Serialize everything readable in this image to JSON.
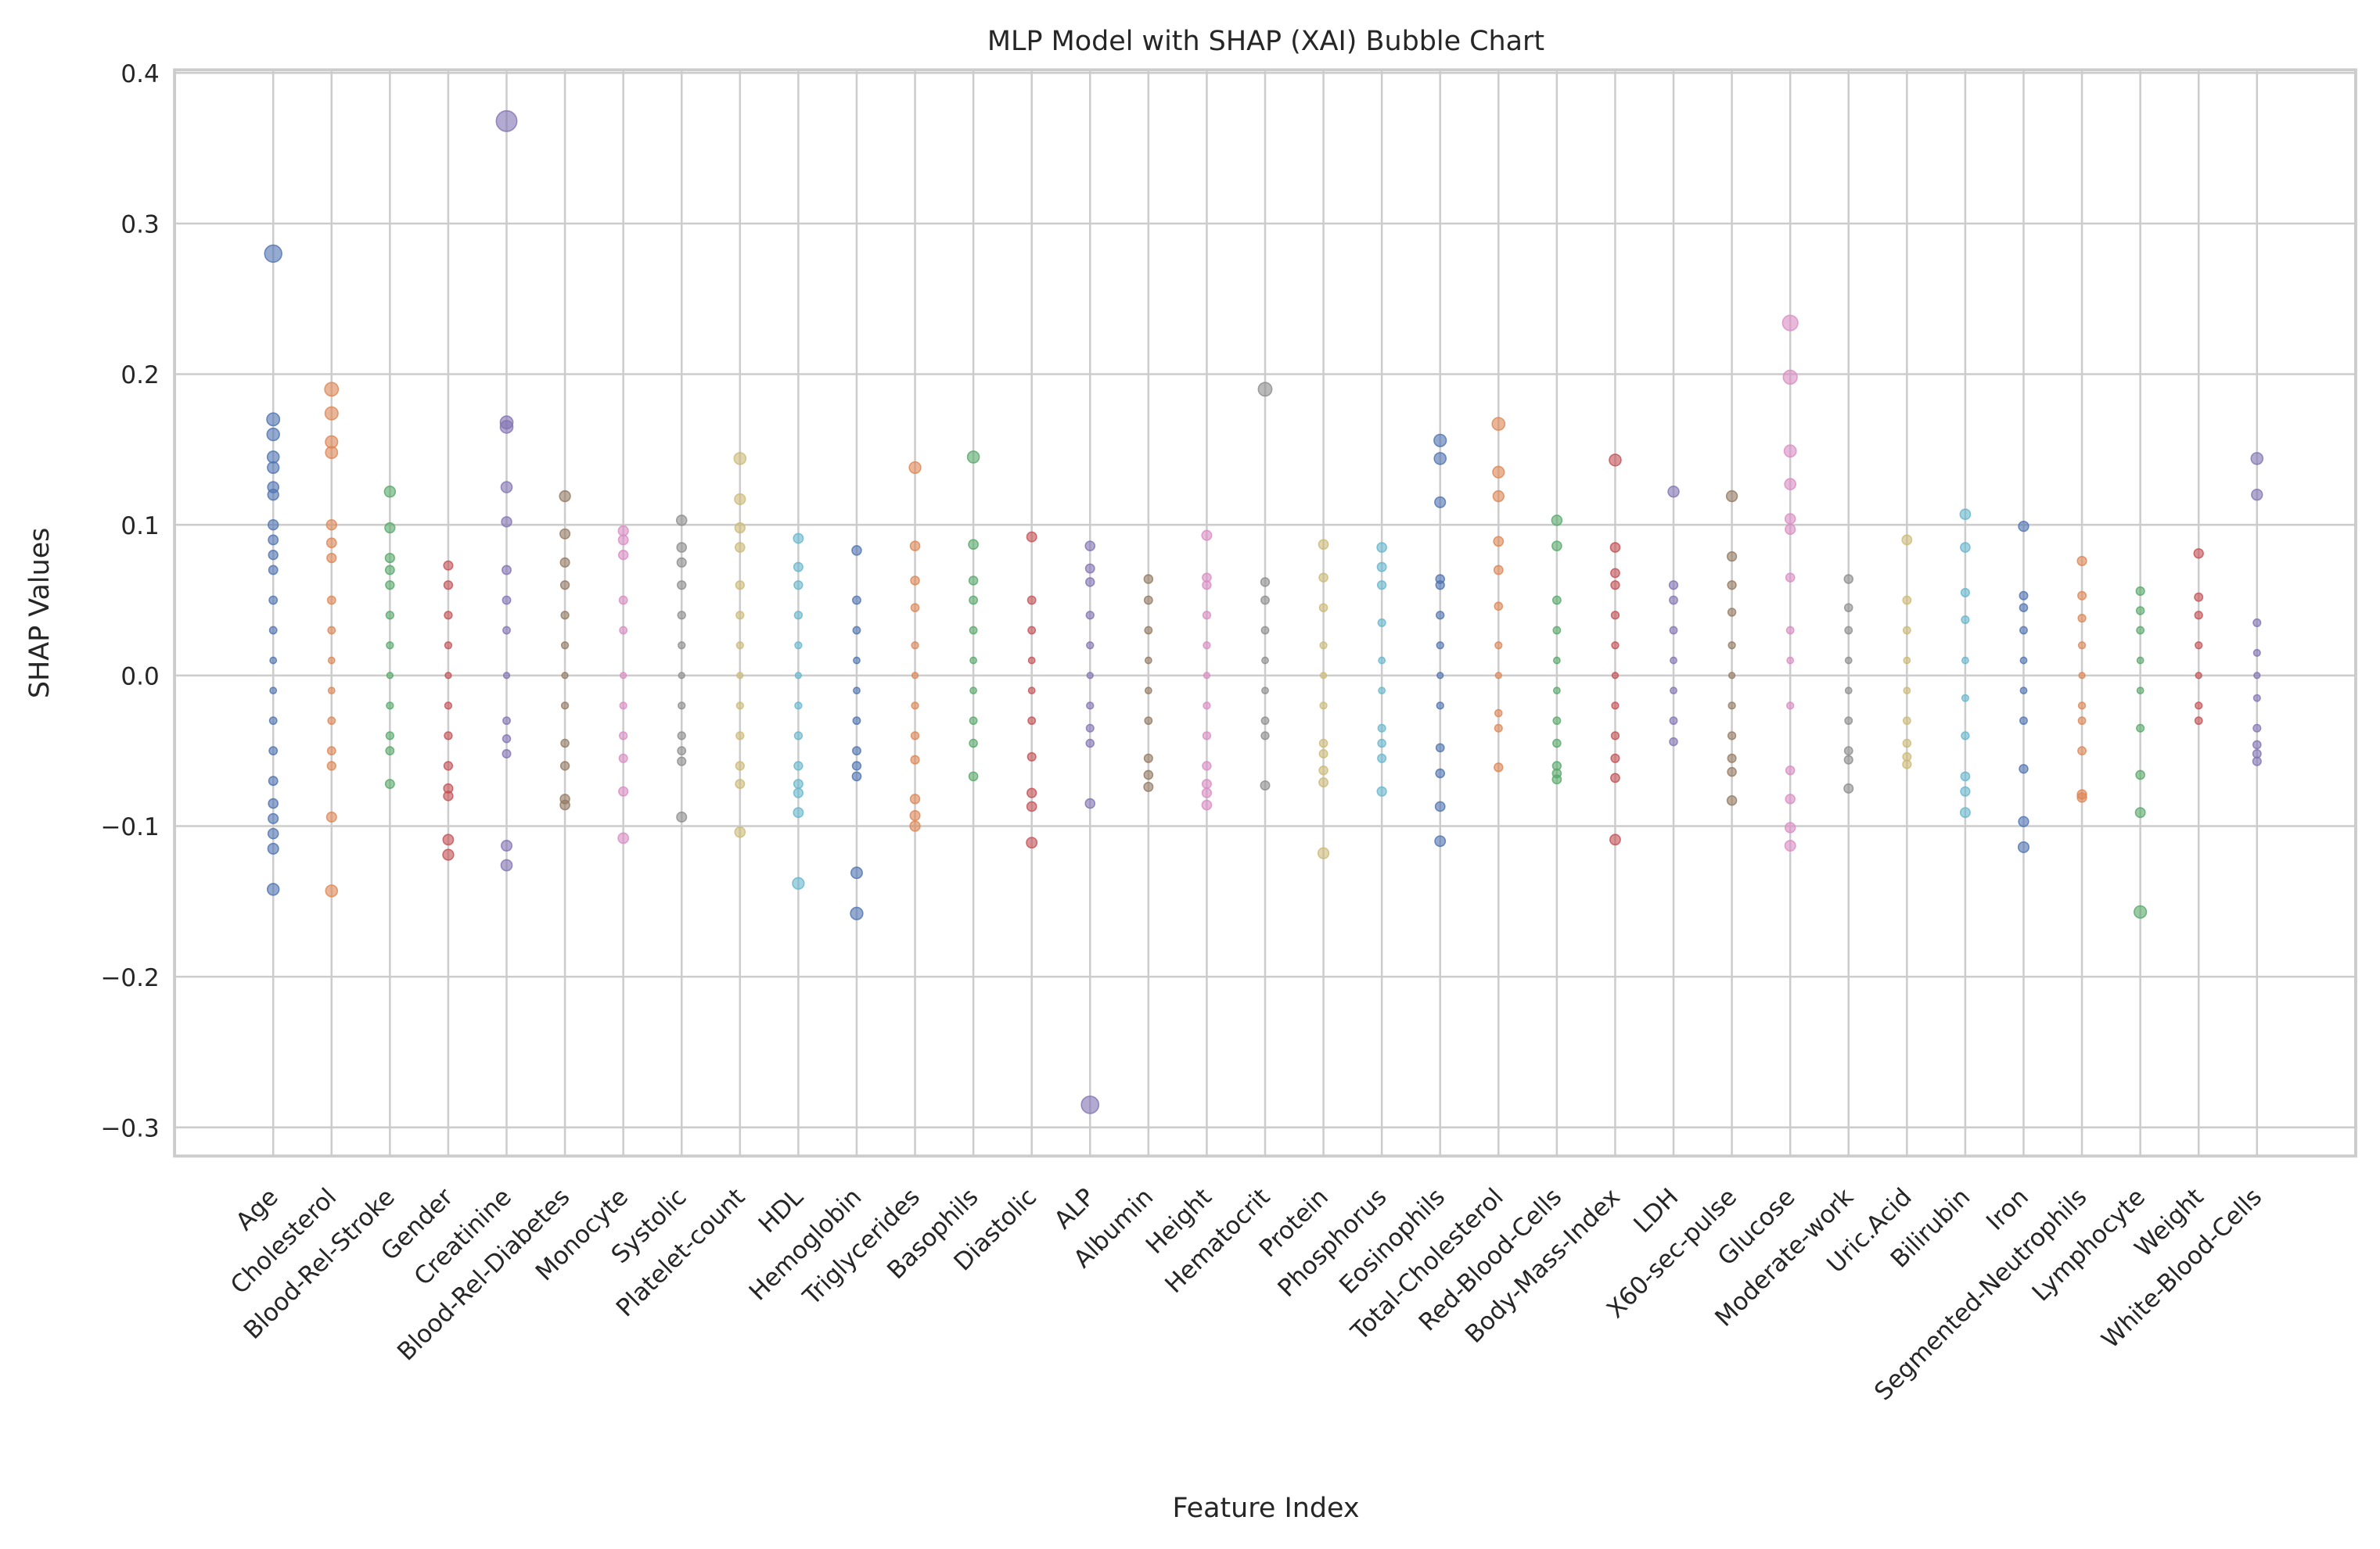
{
  "chart_data": {
    "type": "scatter",
    "title": "MLP Model with SHAP (XAI) Bubble Chart",
    "x_label": "Feature Index",
    "y_label": "SHAP Values",
    "categories": [
      "Age",
      "Cholesterol",
      "Blood-Rel-Stroke",
      "Gender",
      "Creatinine",
      "Blood-Rel-Diabetes",
      "Monocyte",
      "Systolic",
      "Platelet-count",
      "HDL",
      "Hemoglobin",
      "Triglycerides",
      "Basophils",
      "Diastolic",
      "ALP",
      "Albumin",
      "Height",
      "Hematocrit",
      "Protein",
      "Phosphorus",
      "Eosinophils",
      "Total-Cholesterol",
      "Red-Blood-Cells",
      "Body-Mass-Index",
      "LDH",
      "X60-sec-pulse",
      "Glucose",
      "Moderate-work",
      "Uric.Acid",
      "Bilirubin",
      "Iron",
      "Segmented-Neutrophils",
      "Lymphocyte",
      "Weight",
      "White-Blood-Cells"
    ],
    "values": [
      [
        0.28,
        0.17,
        0.16,
        0.145,
        0.138,
        0.125,
        0.12,
        0.1,
        0.09,
        0.08,
        0.07,
        0.05,
        0.03,
        0.01,
        -0.01,
        -0.03,
        -0.05,
        -0.07,
        -0.085,
        -0.095,
        -0.105,
        -0.115,
        -0.142
      ],
      [
        0.19,
        0.174,
        0.155,
        0.148,
        0.1,
        0.088,
        0.078,
        0.05,
        0.03,
        0.01,
        -0.01,
        -0.03,
        -0.05,
        -0.06,
        -0.094,
        -0.143
      ],
      [
        0.122,
        0.098,
        0.078,
        0.07,
        0.06,
        0.04,
        0.02,
        0,
        -0.02,
        -0.04,
        -0.05,
        -0.072
      ],
      [
        0.073,
        0.06,
        0.04,
        0.02,
        0,
        -0.02,
        -0.04,
        -0.06,
        -0.075,
        -0.08,
        -0.109,
        -0.119
      ],
      [
        0.368,
        0.168,
        0.165,
        0.125,
        0.102,
        0.07,
        0.05,
        0.03,
        0,
        -0.03,
        -0.042,
        -0.052,
        -0.113,
        -0.126
      ],
      [
        0.119,
        0.094,
        0.075,
        0.06,
        0.04,
        0.02,
        0,
        -0.02,
        -0.045,
        -0.06,
        -0.082,
        -0.086
      ],
      [
        0.096,
        0.09,
        0.08,
        0.05,
        0.03,
        0,
        -0.02,
        -0.04,
        -0.055,
        -0.077,
        -0.108
      ],
      [
        0.103,
        0.085,
        0.075,
        0.06,
        0.04,
        0.02,
        0,
        -0.02,
        -0.04,
        -0.05,
        -0.057,
        -0.094
      ],
      [
        0.144,
        0.117,
        0.098,
        0.085,
        0.06,
        0.04,
        0.02,
        0,
        -0.02,
        -0.04,
        -0.06,
        -0.072,
        -0.104
      ],
      [
        0.091,
        0.072,
        0.06,
        0.04,
        0.02,
        0,
        -0.02,
        -0.04,
        -0.06,
        -0.072,
        -0.078,
        -0.091,
        -0.138
      ],
      [
        0.083,
        0.05,
        0.03,
        0.01,
        -0.01,
        -0.03,
        -0.05,
        -0.06,
        -0.067,
        -0.131,
        -0.158
      ],
      [
        0.138,
        0.086,
        0.063,
        0.045,
        0.02,
        0,
        -0.02,
        -0.04,
        -0.056,
        -0.082,
        -0.093,
        -0.1
      ],
      [
        0.145,
        0.087,
        0.063,
        0.05,
        0.03,
        0.01,
        -0.01,
        -0.03,
        -0.045,
        -0.067
      ],
      [
        0.092,
        0.05,
        0.03,
        0.01,
        -0.01,
        -0.03,
        -0.054,
        -0.078,
        -0.087,
        -0.111
      ],
      [
        0.086,
        0.071,
        0.062,
        0.04,
        0.02,
        0,
        -0.02,
        -0.035,
        -0.045,
        -0.085,
        -0.285
      ],
      [
        0.064,
        0.05,
        0.03,
        0.01,
        -0.01,
        -0.03,
        -0.055,
        -0.066,
        -0.074
      ],
      [
        0.093,
        0.065,
        0.06,
        0.04,
        0.02,
        0,
        -0.02,
        -0.04,
        -0.06,
        -0.072,
        -0.078,
        -0.086
      ],
      [
        0.19,
        0.062,
        0.05,
        0.03,
        0.01,
        -0.01,
        -0.03,
        -0.04,
        -0.073
      ],
      [
        0.087,
        0.065,
        0.045,
        0.02,
        0,
        -0.02,
        -0.045,
        -0.052,
        -0.063,
        -0.071,
        -0.118
      ],
      [
        0.085,
        0.072,
        0.06,
        0.035,
        0.01,
        -0.01,
        -0.035,
        -0.045,
        -0.055,
        -0.077
      ],
      [
        0.156,
        0.144,
        0.115,
        0.064,
        0.06,
        0.04,
        0.02,
        0,
        -0.02,
        -0.048,
        -0.065,
        -0.087,
        -0.11
      ],
      [
        0.167,
        0.135,
        0.119,
        0.089,
        0.07,
        0.046,
        0.02,
        0,
        -0.025,
        -0.035,
        -0.061
      ],
      [
        0.103,
        0.086,
        0.05,
        0.03,
        0.01,
        -0.01,
        -0.03,
        -0.045,
        -0.06,
        -0.065,
        -0.069
      ],
      [
        0.143,
        0.085,
        0.068,
        0.06,
        0.04,
        0.02,
        0,
        -0.02,
        -0.04,
        -0.055,
        -0.068,
        -0.109
      ],
      [
        0.122,
        0.06,
        0.05,
        0.03,
        0.01,
        -0.01,
        -0.03,
        -0.044
      ],
      [
        0.119,
        0.079,
        0.06,
        0.042,
        0.02,
        0,
        -0.02,
        -0.04,
        -0.055,
        -0.064,
        -0.083
      ],
      [
        0.234,
        0.198,
        0.149,
        0.127,
        0.104,
        0.097,
        0.065,
        0.03,
        0.01,
        -0.02,
        -0.063,
        -0.082,
        -0.101,
        -0.113
      ],
      [
        0.064,
        0.045,
        0.03,
        0.01,
        -0.01,
        -0.03,
        -0.05,
        -0.056,
        -0.075
      ],
      [
        0.09,
        0.05,
        0.03,
        0.01,
        -0.01,
        -0.03,
        -0.045,
        -0.054,
        -0.059
      ],
      [
        0.107,
        0.085,
        0.055,
        0.037,
        0.01,
        -0.015,
        -0.04,
        -0.067,
        -0.077,
        -0.091
      ],
      [
        0.099,
        0.053,
        0.045,
        0.03,
        0.01,
        -0.01,
        -0.03,
        -0.062,
        -0.097,
        -0.114
      ],
      [
        0.076,
        0.053,
        0.038,
        0.02,
        0,
        -0.02,
        -0.03,
        -0.05,
        -0.079,
        -0.081
      ],
      [
        0.056,
        0.043,
        0.03,
        0.01,
        -0.01,
        -0.035,
        -0.066,
        -0.091,
        -0.157
      ],
      [
        0.081,
        0.052,
        0.04,
        0.02,
        0,
        -0.02,
        -0.03
      ],
      [
        0.144,
        0.12,
        0.035,
        0.015,
        0,
        -0.015,
        -0.035,
        -0.046,
        -0.052,
        -0.057
      ]
    ],
    "colors": [
      "#4c72b0",
      "#dd8452",
      "#55a868",
      "#c44e52",
      "#8172b3",
      "#937860",
      "#da8bc3",
      "#8c8c8c",
      "#ccb974",
      "#64b5cd"
    ],
    "ylim": [
      -0.319,
      0.402
    ],
    "yticks": [
      {
        "value": -0.3,
        "label": "−0.3"
      },
      {
        "value": -0.2,
        "label": "−0.2"
      },
      {
        "value": -0.1,
        "label": "−0.1"
      },
      {
        "value": 0,
        "label": "0.0"
      },
      0.1,
      0.2,
      0.3,
      0.4
    ],
    "grid": true
  }
}
